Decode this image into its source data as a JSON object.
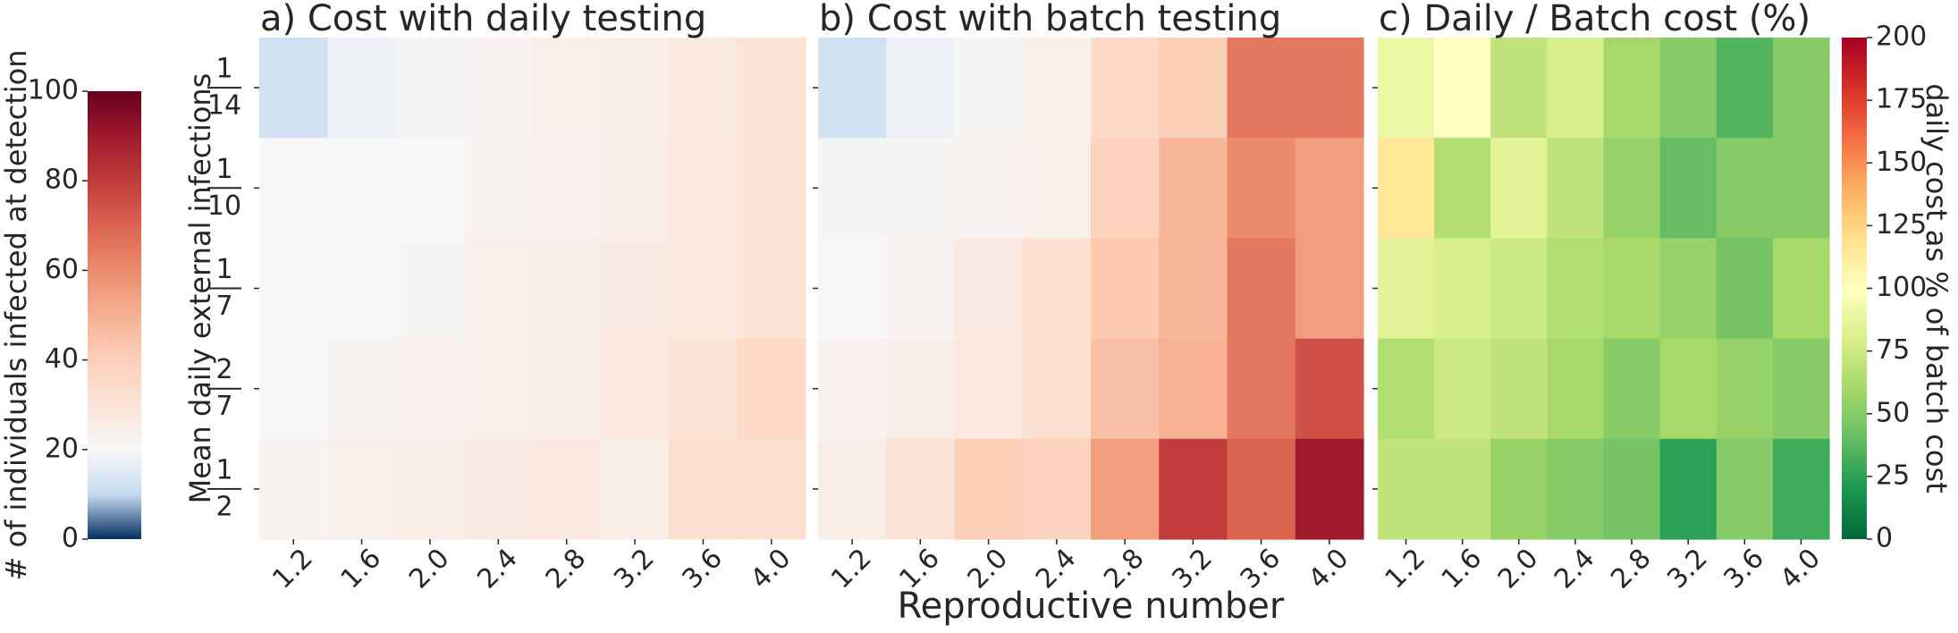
{
  "chart_data": [
    {
      "type": "heatmap",
      "title": "a) Cost with daily testing",
      "ylabel": "Mean daily external infections",
      "x": [
        "1.2",
        "1.6",
        "2.0",
        "2.4",
        "2.8",
        "3.2",
        "3.6",
        "4.0"
      ],
      "y": [
        [
          "1",
          "14"
        ],
        [
          "1",
          "10"
        ],
        [
          "1",
          "7"
        ],
        [
          "2",
          "7"
        ],
        [
          "1",
          "2"
        ]
      ],
      "values": [
        [
          12,
          18,
          19,
          22,
          24,
          25,
          27,
          30
        ],
        [
          20,
          20,
          20,
          22,
          23,
          25,
          28,
          30
        ],
        [
          20,
          20,
          21,
          24,
          25,
          26,
          28,
          30
        ],
        [
          20,
          22,
          23,
          24,
          25,
          28,
          30,
          35
        ],
        [
          22,
          24,
          25,
          26,
          27,
          25,
          32,
          32
        ]
      ],
      "colormap": [
        "#053061",
        "#c6dbef",
        "#f7f7f7",
        "#fbe3d6",
        "#fcd0b8",
        "#f6b092",
        "#ec8b6c",
        "#db6451",
        "#c13b3b",
        "#9e1a2c",
        "#67001f"
      ],
      "clim": [
        0,
        100
      ],
      "colorbar": {
        "label": "# of individuals infected at detection",
        "ticks": [
          0,
          20,
          40,
          60,
          80,
          100
        ],
        "position": "left"
      }
    },
    {
      "type": "heatmap",
      "title": "b) Cost with batch testing",
      "xlabel": "Reproductive number",
      "x": [
        "1.2",
        "1.6",
        "2.0",
        "2.4",
        "2.8",
        "3.2",
        "3.6",
        "4.0"
      ],
      "values": [
        [
          12,
          18,
          21,
          24,
          35,
          40,
          65,
          65
        ],
        [
          19,
          21,
          22,
          24,
          38,
          48,
          60,
          55
        ],
        [
          20,
          22,
          26,
          32,
          42,
          48,
          65,
          55
        ],
        [
          23,
          25,
          28,
          32,
          45,
          50,
          65,
          75
        ],
        [
          25,
          30,
          40,
          38,
          55,
          80,
          70,
          90
        ]
      ],
      "colormap": [
        "#053061",
        "#c6dbef",
        "#f7f7f7",
        "#fbe3d6",
        "#fcd0b8",
        "#f6b092",
        "#ec8b6c",
        "#db6451",
        "#c13b3b",
        "#9e1a2c",
        "#67001f"
      ],
      "clim": [
        0,
        100
      ]
    },
    {
      "type": "heatmap",
      "title": "c) Daily / Batch cost (%)",
      "x": [
        "1.2",
        "1.6",
        "2.0",
        "2.4",
        "2.8",
        "3.2",
        "3.6",
        "4.0"
      ],
      "values": [
        [
          90,
          100,
          70,
          80,
          60,
          50,
          35,
          50
        ],
        [
          115,
          65,
          85,
          70,
          55,
          40,
          50,
          50
        ],
        [
          85,
          80,
          75,
          65,
          60,
          55,
          45,
          60
        ],
        [
          65,
          75,
          70,
          60,
          50,
          60,
          55,
          50
        ],
        [
          70,
          70,
          55,
          50,
          45,
          25,
          50,
          30
        ]
      ],
      "colormap": [
        "#006837",
        "#1a9850",
        "#66bd63",
        "#a6d96a",
        "#d9ef8b",
        "#ffffbf",
        "#fee08b",
        "#fdae61",
        "#f46d43",
        "#d73027",
        "#a50026"
      ],
      "clim": [
        0,
        200
      ],
      "colorbar": {
        "label": "daily cost as % of batch cost",
        "ticks": [
          0,
          25,
          50,
          75,
          100,
          125,
          150,
          175,
          200
        ],
        "position": "right"
      }
    }
  ]
}
